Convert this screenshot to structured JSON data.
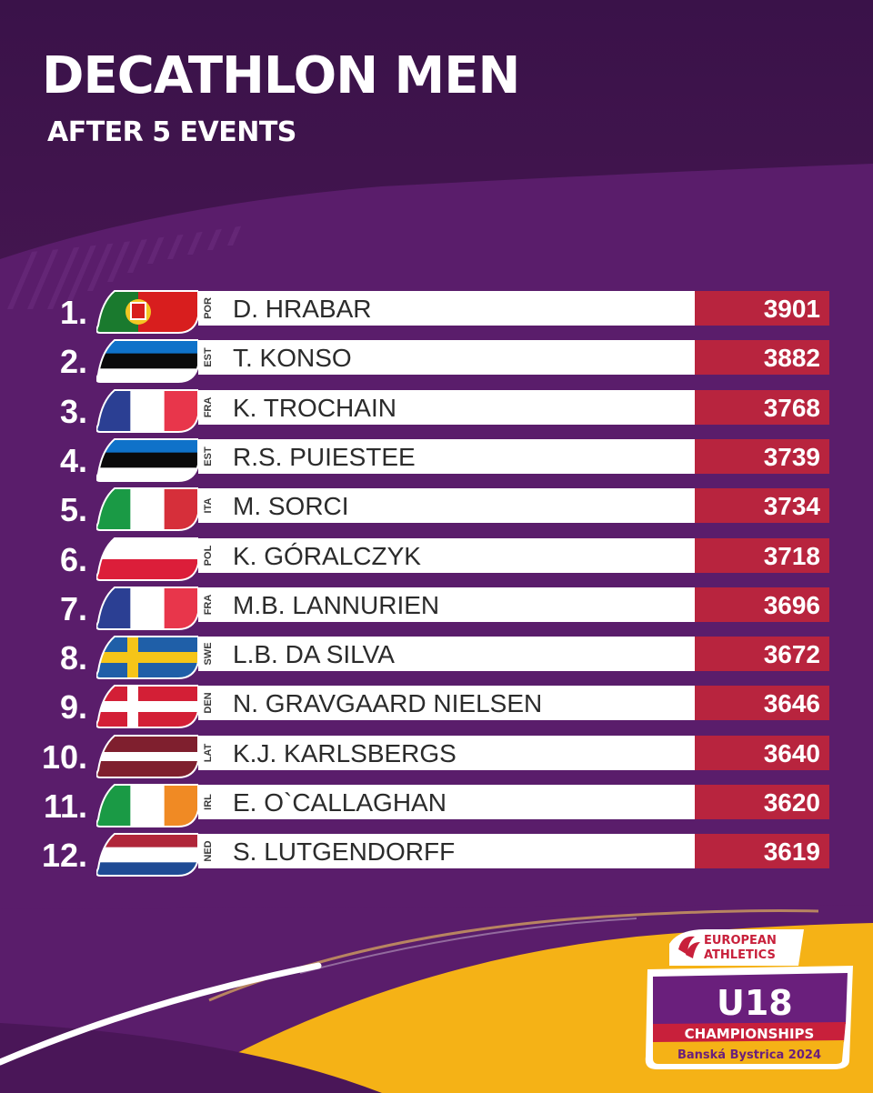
{
  "header": {
    "title": "DECATHLON MEN",
    "subtitle": "AFTER 5 EVENTS"
  },
  "standings": [
    {
      "rank": "1.",
      "country": "POR",
      "name": "D. HRABAR",
      "points": "3901",
      "flag": {
        "type": "vertical",
        "colors": [
          "#1a7a2e",
          "#d81e1e"
        ],
        "emblem": "portugal-shield"
      }
    },
    {
      "rank": "2.",
      "country": "EST",
      "name": "T. KONSO",
      "points": "3882",
      "flag": {
        "type": "horizontal",
        "colors": [
          "#0f72c9",
          "#0a0a0a",
          "#ffffff"
        ]
      }
    },
    {
      "rank": "3.",
      "country": "FRA",
      "name": "K. TROCHAIN",
      "points": "3768",
      "flag": {
        "type": "vertical",
        "colors": [
          "#2b3f93",
          "#ffffff",
          "#e8364b"
        ]
      }
    },
    {
      "rank": "4.",
      "country": "EST",
      "name": "R.S. PUIESTEE",
      "points": "3739",
      "flag": {
        "type": "horizontal",
        "colors": [
          "#0f72c9",
          "#0a0a0a",
          "#ffffff"
        ]
      }
    },
    {
      "rank": "5.",
      "country": "ITA",
      "name": "M. SORCI",
      "points": "3734",
      "flag": {
        "type": "vertical",
        "colors": [
          "#1a9a45",
          "#ffffff",
          "#d62f3a"
        ]
      }
    },
    {
      "rank": "6.",
      "country": "POL",
      "name": "K. GÓRALCZYK",
      "points": "3718",
      "flag": {
        "type": "horizontal",
        "colors": [
          "#ffffff",
          "#dc1e3a"
        ]
      }
    },
    {
      "rank": "7.",
      "country": "FRA",
      "name": "M.B. LANNURIEN",
      "points": "3696",
      "flag": {
        "type": "vertical",
        "colors": [
          "#2b3f93",
          "#ffffff",
          "#e8364b"
        ]
      }
    },
    {
      "rank": "8.",
      "country": "SWE",
      "name": "L.B. DA SILVA",
      "points": "3672",
      "flag": {
        "type": "nordic",
        "colors": [
          "#1f5fa8",
          "#f5c518"
        ]
      }
    },
    {
      "rank": "9.",
      "country": "DEN",
      "name": "N. GRAVGAARD NIELSEN",
      "points": "3646",
      "flag": {
        "type": "nordic",
        "colors": [
          "#d31f36",
          "#ffffff"
        ]
      }
    },
    {
      "rank": "10.",
      "country": "LAT",
      "name": "K.J. KARLSBERGS",
      "points": "3640",
      "flag": {
        "type": "latvia",
        "colors": [
          "#7f1f2e",
          "#ffffff"
        ]
      }
    },
    {
      "rank": "11.",
      "country": "IRL",
      "name": "E. O`CALLAGHAN",
      "points": "3620",
      "flag": {
        "type": "vertical",
        "colors": [
          "#1a9a45",
          "#ffffff",
          "#f08a24"
        ]
      }
    },
    {
      "rank": "12.",
      "country": "NED",
      "name": "S. LUTGENDORFF",
      "points": "3619",
      "flag": {
        "type": "horizontal",
        "colors": [
          "#b0263a",
          "#ffffff",
          "#1f4b94"
        ]
      }
    }
  ],
  "logo": {
    "line1": "EUROPEAN",
    "line2": "ATHLETICS",
    "event": "U18",
    "championships": "CHAMPIONSHIPS",
    "location": "Banská Bystrica 2024"
  },
  "colors": {
    "background_dark": "#3a1249",
    "background_purple": "#5a1d6b",
    "score_red": "#b8243e",
    "accent_yellow": "#f5b216",
    "accent_orange": "#f08a24"
  }
}
